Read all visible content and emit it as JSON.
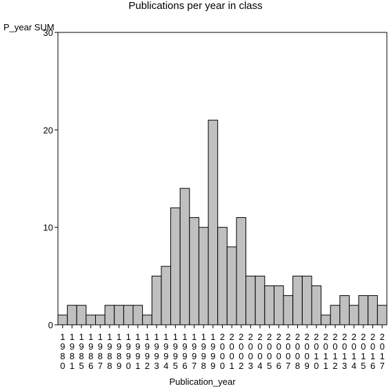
{
  "chart_data": {
    "type": "bar",
    "title": "Publications per year in class",
    "ylabel": "P_year SUM",
    "xlabel": "Publication_year",
    "ylim": [
      0,
      30
    ],
    "yticks": [
      0,
      10,
      20,
      30
    ],
    "grid": false,
    "bar_color": "#c0c0c0",
    "categories": [
      "1980",
      "1981",
      "1985",
      "1986",
      "1987",
      "1988",
      "1989",
      "1990",
      "1991",
      "1992",
      "1993",
      "1994",
      "1995",
      "1996",
      "1997",
      "1998",
      "1999",
      "2000",
      "2001",
      "2002",
      "2003",
      "2004",
      "2005",
      "2006",
      "2007",
      "2008",
      "2009",
      "2010",
      "2011",
      "2012",
      "2013",
      "2014",
      "2015",
      "2016",
      "2017"
    ],
    "values": [
      1,
      2,
      2,
      1,
      1,
      2,
      2,
      2,
      2,
      1,
      5,
      6,
      12,
      14,
      11,
      10,
      21,
      10,
      8,
      11,
      5,
      5,
      4,
      4,
      3,
      5,
      5,
      4,
      1,
      2,
      3,
      2,
      3,
      3,
      2
    ]
  }
}
